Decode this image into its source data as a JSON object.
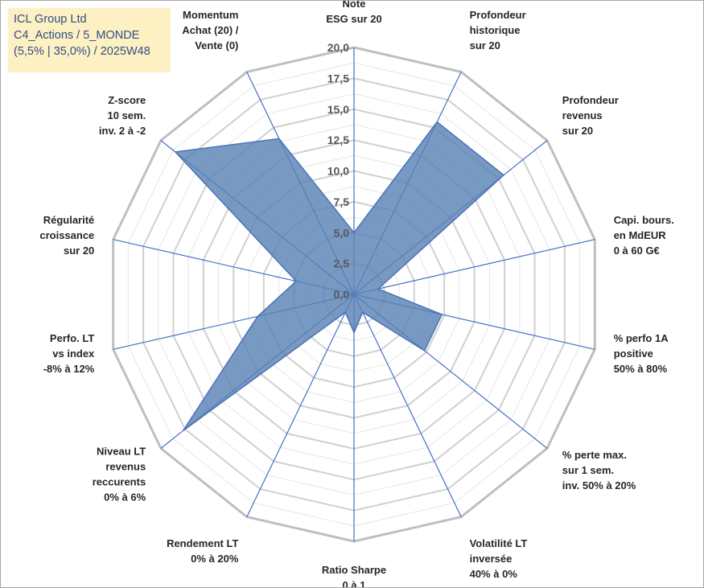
{
  "info_box": {
    "line1": "ICL Group Ltd",
    "line2": "C4_Actions / 5_MONDE",
    "line3": "(5,5% | 35,0%) / 2025W48"
  },
  "colors": {
    "grid": "#c8c8c8",
    "spoke": "#4472c4",
    "fill": "#5a82b4",
    "outline": "#4a72b8",
    "info_bg": "#fdf0c2",
    "info_text": "#2f4f86"
  },
  "chart_data": {
    "type": "radar",
    "title": "",
    "rmin": 0,
    "rmax": 20,
    "tick_step": 2.5,
    "gridlines": true,
    "ticks": [
      "0,0",
      "2,5",
      "5,0",
      "7,5",
      "10,0",
      "12,5",
      "15,0",
      "17,5",
      "20,0"
    ],
    "axes": [
      {
        "label": [
          "Note",
          "ESG sur 20"
        ],
        "value": 5.0
      },
      {
        "label": [
          "Profondeur",
          "historique",
          "sur 20"
        ],
        "value": 15.5
      },
      {
        "label": [
          "Profondeur",
          "revenus",
          "sur 20"
        ],
        "value": 15.5
      },
      {
        "label": [
          "Capi. bours.",
          "en MdEUR",
          "0 à 60 G€"
        ],
        "value": 2.0
      },
      {
        "label": [
          "% perfo 1A",
          "positive",
          "50% à 80%"
        ],
        "value": 7.3
      },
      {
        "label": [
          "% perte max.",
          "sur 1 sem.",
          "inv. 50% à 20%"
        ],
        "value": 7.3
      },
      {
        "label": [
          "Volatilité LT",
          "inversée",
          "40% à 0%"
        ],
        "value": 1.6
      },
      {
        "label": [
          "Ratio Sharpe",
          "0 à 1"
        ],
        "value": 3.1
      },
      {
        "label": [
          "Rendement LT",
          "0% à 20%"
        ],
        "value": 1.6
      },
      {
        "label": [
          "Niveau LT",
          "revenus",
          "reccurents",
          "0% à 6%"
        ],
        "value": 17.7
      },
      {
        "label": [
          "Perfo. LT",
          "vs index",
          "-8% à 12%"
        ],
        "value": 8.0
      },
      {
        "label": [
          "Régularité",
          "croissance",
          "sur 20"
        ],
        "value": 4.8
      },
      {
        "label": [
          "Z-score",
          "10 sem.",
          "inv. 2 à -2"
        ],
        "value": 18.5
      },
      {
        "label": [
          "Momentum",
          "Achat (20) /",
          "Vente (0)"
        ],
        "value": 14.0
      }
    ]
  }
}
